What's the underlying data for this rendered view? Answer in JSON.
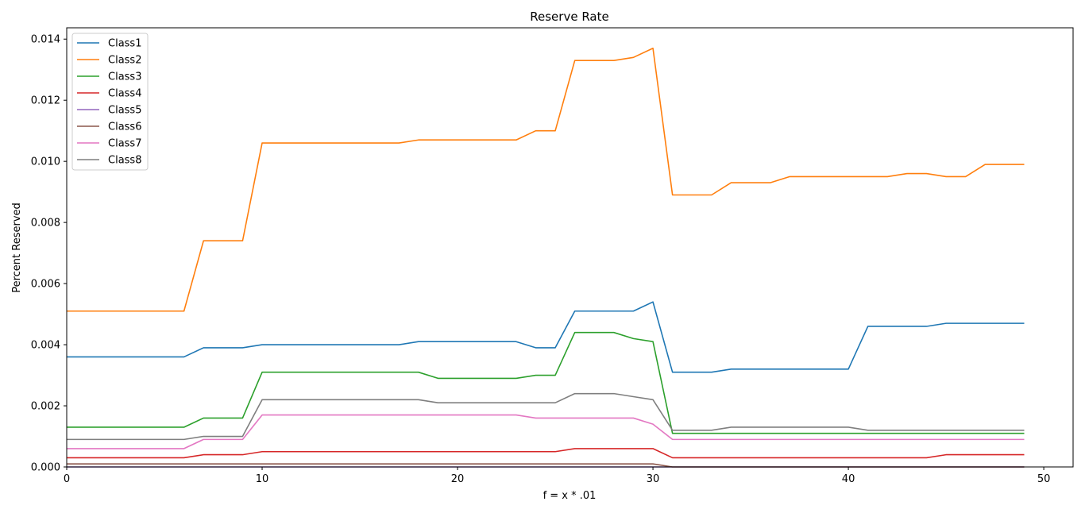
{
  "chart_data": {
    "type": "line",
    "title": "Reserve Rate",
    "xlabel": "f = x * .01",
    "ylabel": "Percent Reserved",
    "xlim": [
      0,
      51.5
    ],
    "ylim": [
      0,
      0.01437
    ],
    "xticks": [
      0,
      10,
      20,
      30,
      40,
      50
    ],
    "yticks": [
      0.0,
      0.002,
      0.004,
      0.006,
      0.008,
      0.01,
      0.012,
      0.014
    ],
    "ytick_labels": [
      "0.000",
      "0.002",
      "0.004",
      "0.006",
      "0.008",
      "0.010",
      "0.012",
      "0.014"
    ],
    "grid": false,
    "legend_position": "top-left",
    "x": [
      0,
      1,
      2,
      3,
      4,
      5,
      6,
      7,
      8,
      9,
      10,
      11,
      12,
      13,
      14,
      15,
      16,
      17,
      18,
      19,
      20,
      21,
      22,
      23,
      24,
      25,
      26,
      27,
      28,
      29,
      30,
      31,
      32,
      33,
      34,
      35,
      36,
      37,
      38,
      39,
      40,
      41,
      42,
      43,
      44,
      45,
      46,
      47,
      48,
      49
    ],
    "series": [
      {
        "name": "Class1",
        "color": "#1f77b4",
        "values": [
          0.0036,
          0.0036,
          0.0036,
          0.0036,
          0.0036,
          0.0036,
          0.0036,
          0.0039,
          0.0039,
          0.0039,
          0.004,
          0.004,
          0.004,
          0.004,
          0.004,
          0.004,
          0.004,
          0.004,
          0.0041,
          0.0041,
          0.0041,
          0.0041,
          0.0041,
          0.0041,
          0.0039,
          0.0039,
          0.0051,
          0.0051,
          0.0051,
          0.0051,
          0.0054,
          0.0031,
          0.0031,
          0.0031,
          0.0032,
          0.0032,
          0.0032,
          0.0032,
          0.0032,
          0.0032,
          0.0032,
          0.0046,
          0.0046,
          0.0046,
          0.0046,
          0.0047,
          0.0047,
          0.0047,
          0.0047,
          0.0047
        ]
      },
      {
        "name": "Class2",
        "color": "#ff7f0e",
        "values": [
          0.0051,
          0.0051,
          0.0051,
          0.0051,
          0.0051,
          0.0051,
          0.0051,
          0.0074,
          0.0074,
          0.0074,
          0.0106,
          0.0106,
          0.0106,
          0.0106,
          0.0106,
          0.0106,
          0.0106,
          0.0106,
          0.0107,
          0.0107,
          0.0107,
          0.0107,
          0.0107,
          0.0107,
          0.011,
          0.011,
          0.0133,
          0.0133,
          0.0133,
          0.0134,
          0.0137,
          0.0089,
          0.0089,
          0.0089,
          0.0093,
          0.0093,
          0.0093,
          0.0095,
          0.0095,
          0.0095,
          0.0095,
          0.0095,
          0.0095,
          0.0096,
          0.0096,
          0.0095,
          0.0095,
          0.0099,
          0.0099,
          0.0099
        ]
      },
      {
        "name": "Class3",
        "color": "#2ca02c",
        "values": [
          0.0013,
          0.0013,
          0.0013,
          0.0013,
          0.0013,
          0.0013,
          0.0013,
          0.0016,
          0.0016,
          0.0016,
          0.0031,
          0.0031,
          0.0031,
          0.0031,
          0.0031,
          0.0031,
          0.0031,
          0.0031,
          0.0031,
          0.0029,
          0.0029,
          0.0029,
          0.0029,
          0.0029,
          0.003,
          0.003,
          0.0044,
          0.0044,
          0.0044,
          0.0042,
          0.0041,
          0.0011,
          0.0011,
          0.0011,
          0.0011,
          0.0011,
          0.0011,
          0.0011,
          0.0011,
          0.0011,
          0.0011,
          0.0011,
          0.0011,
          0.0011,
          0.0011,
          0.0011,
          0.0011,
          0.0011,
          0.0011,
          0.0011
        ]
      },
      {
        "name": "Class4",
        "color": "#d62728",
        "values": [
          0.0003,
          0.0003,
          0.0003,
          0.0003,
          0.0003,
          0.0003,
          0.0003,
          0.0004,
          0.0004,
          0.0004,
          0.0005,
          0.0005,
          0.0005,
          0.0005,
          0.0005,
          0.0005,
          0.0005,
          0.0005,
          0.0005,
          0.0005,
          0.0005,
          0.0005,
          0.0005,
          0.0005,
          0.0005,
          0.0005,
          0.0006,
          0.0006,
          0.0006,
          0.0006,
          0.0006,
          0.0003,
          0.0003,
          0.0003,
          0.0003,
          0.0003,
          0.0003,
          0.0003,
          0.0003,
          0.0003,
          0.0003,
          0.0003,
          0.0003,
          0.0003,
          0.0003,
          0.0004,
          0.0004,
          0.0004,
          0.0004,
          0.0004
        ]
      },
      {
        "name": "Class5",
        "color": "#9467bd",
        "values": [
          0.0,
          0.0,
          0.0,
          0.0,
          0.0,
          0.0,
          0.0,
          0.0,
          0.0,
          0.0,
          0.0,
          0.0,
          0.0,
          0.0,
          0.0,
          0.0,
          0.0,
          0.0,
          0.0,
          0.0,
          0.0,
          0.0,
          0.0,
          0.0,
          0.0,
          0.0,
          0.0,
          0.0,
          0.0,
          0.0,
          0.0,
          0.0,
          0.0,
          0.0,
          0.0,
          0.0,
          0.0,
          0.0,
          0.0,
          0.0,
          0.0,
          0.0,
          0.0,
          0.0,
          0.0,
          0.0,
          0.0,
          0.0,
          0.0,
          0.0
        ]
      },
      {
        "name": "Class6",
        "color": "#8c564b",
        "values": [
          0.0001,
          0.0001,
          0.0001,
          0.0001,
          0.0001,
          0.0001,
          0.0001,
          0.0001,
          0.0001,
          0.0001,
          0.0001,
          0.0001,
          0.0001,
          0.0001,
          0.0001,
          0.0001,
          0.0001,
          0.0001,
          0.0001,
          0.0001,
          0.0001,
          0.0001,
          0.0001,
          0.0001,
          0.0001,
          0.0001,
          0.0001,
          0.0001,
          0.0001,
          0.0001,
          0.0001,
          0.0,
          0.0,
          0.0,
          0.0,
          0.0,
          0.0,
          0.0,
          0.0,
          0.0,
          0.0,
          0.0,
          0.0,
          0.0,
          0.0,
          0.0,
          0.0,
          0.0,
          0.0,
          0.0
        ]
      },
      {
        "name": "Class7",
        "color": "#e377c2",
        "values": [
          0.0006,
          0.0006,
          0.0006,
          0.0006,
          0.0006,
          0.0006,
          0.0006,
          0.0009,
          0.0009,
          0.0009,
          0.0017,
          0.0017,
          0.0017,
          0.0017,
          0.0017,
          0.0017,
          0.0017,
          0.0017,
          0.0017,
          0.0017,
          0.0017,
          0.0017,
          0.0017,
          0.0017,
          0.0016,
          0.0016,
          0.0016,
          0.0016,
          0.0016,
          0.0016,
          0.0014,
          0.0009,
          0.0009,
          0.0009,
          0.0009,
          0.0009,
          0.0009,
          0.0009,
          0.0009,
          0.0009,
          0.0009,
          0.0009,
          0.0009,
          0.0009,
          0.0009,
          0.0009,
          0.0009,
          0.0009,
          0.0009,
          0.0009
        ]
      },
      {
        "name": "Class8",
        "color": "#7f7f7f",
        "values": [
          0.0009,
          0.0009,
          0.0009,
          0.0009,
          0.0009,
          0.0009,
          0.0009,
          0.001,
          0.001,
          0.001,
          0.0022,
          0.0022,
          0.0022,
          0.0022,
          0.0022,
          0.0022,
          0.0022,
          0.0022,
          0.0022,
          0.0021,
          0.0021,
          0.0021,
          0.0021,
          0.0021,
          0.0021,
          0.0021,
          0.0024,
          0.0024,
          0.0024,
          0.0023,
          0.0022,
          0.0012,
          0.0012,
          0.0012,
          0.0013,
          0.0013,
          0.0013,
          0.0013,
          0.0013,
          0.0013,
          0.0013,
          0.0012,
          0.0012,
          0.0012,
          0.0012,
          0.0012,
          0.0012,
          0.0012,
          0.0012,
          0.0012
        ]
      }
    ]
  }
}
